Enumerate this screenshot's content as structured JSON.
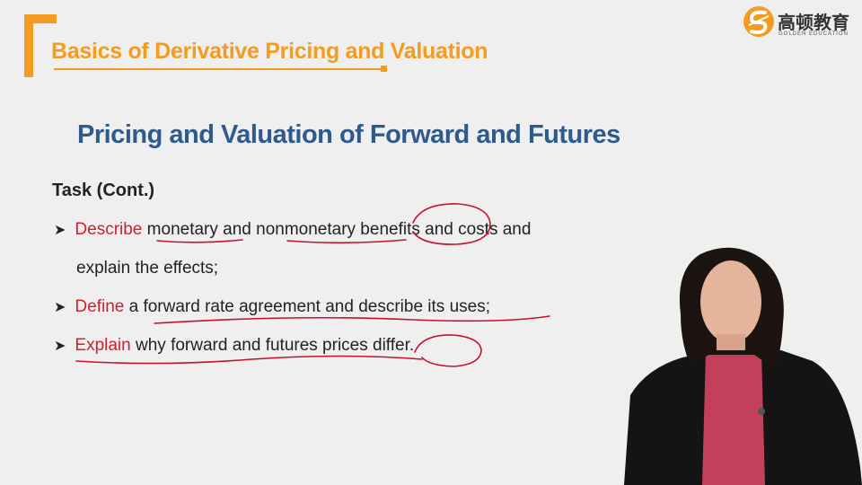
{
  "header": {
    "title": "Basics of Derivative Pricing and Valuation"
  },
  "logo": {
    "chinese": "高顿教育",
    "english": "GOLDEN EDUCATION"
  },
  "slide": {
    "title": "Pricing and Valuation of Forward and Futures",
    "task_heading": "Task (Cont.)",
    "bullets": [
      {
        "keyword": "Describe",
        "text": " monetary and nonmonetary benefits and costs and",
        "continuation": "explain the effects;"
      },
      {
        "keyword": "Define",
        "text": " a forward rate agreement and describe its uses;"
      },
      {
        "keyword": "Explain",
        "text": " why forward and futures prices differ."
      }
    ]
  },
  "colors": {
    "accent_orange": "#f39c1f",
    "title_blue": "#2e5a8c",
    "keyword_red": "#d2202a",
    "annotation_red": "#c8102e"
  },
  "icons": {
    "bullet": "arrow-right-icon",
    "logo": "golden-education-logo"
  }
}
